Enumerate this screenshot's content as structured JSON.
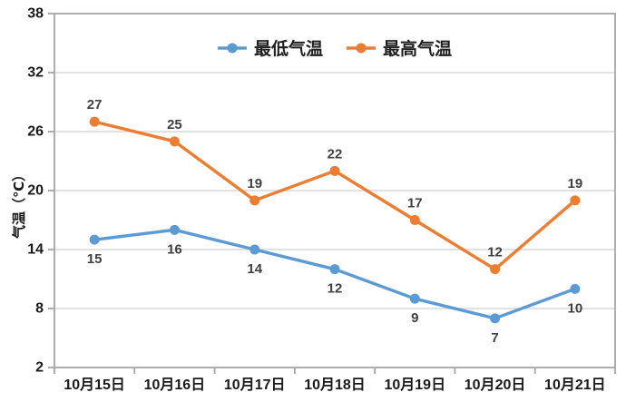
{
  "chart_data": {
    "type": "line",
    "title": "",
    "categories": [
      "10月15日",
      "10月16日",
      "10月17日",
      "10月18日",
      "10月19日",
      "10月20日",
      "10月21日"
    ],
    "series": [
      {
        "name": "最低气温",
        "color": "#5B9BD5",
        "values": [
          15,
          16,
          14,
          12,
          9,
          7,
          10
        ],
        "label_position": "below",
        "marker": "circle"
      },
      {
        "name": "最高气温",
        "color": "#ED7D31",
        "values": [
          27,
          25,
          19,
          22,
          17,
          12,
          19
        ],
        "label_position": "above",
        "marker": "circle"
      }
    ],
    "xlabel": "",
    "ylabel": "气温（℃）",
    "ylim": [
      2,
      38
    ],
    "yticks": [
      2,
      8,
      14,
      20,
      26,
      32,
      38
    ],
    "grid": true,
    "data_labels": true,
    "legend_position": "top-center"
  },
  "colors": {
    "background": "#FFFFFF",
    "gridline": "#D9D9D9",
    "axis_line": "#A6A6A6",
    "tick_label": "#1A1A1A",
    "data_label": "#404040",
    "min_series": "#5B9BD5",
    "max_series": "#ED7D31"
  }
}
